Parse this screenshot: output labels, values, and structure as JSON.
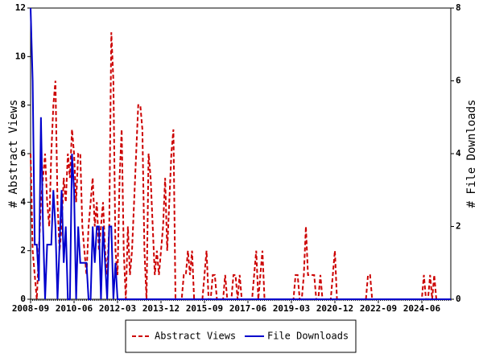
{
  "chart_data": {
    "type": "line",
    "y_label": "# Abstract Views",
    "y2_label": "# File Downloads",
    "x": [
      "2008-09",
      "2008-10",
      "2008-11",
      "2008-12",
      "2009-01",
      "2009-02",
      "2009-03",
      "2009-04",
      "2009-05",
      "2009-06",
      "2009-07",
      "2009-08",
      "2009-09",
      "2009-10",
      "2009-11",
      "2009-12",
      "2010-01",
      "2010-02",
      "2010-03",
      "2010-04",
      "2010-05",
      "2010-06",
      "2010-07",
      "2010-08",
      "2010-09",
      "2010-10",
      "2010-11",
      "2010-12",
      "2011-01",
      "2011-02",
      "2011-03",
      "2011-04",
      "2011-05",
      "2011-06",
      "2011-07",
      "2011-08",
      "2011-09",
      "2011-10",
      "2011-11",
      "2011-12",
      "2012-01",
      "2012-02",
      "2012-03",
      "2012-04",
      "2012-05",
      "2012-06",
      "2012-07",
      "2012-08",
      "2012-09",
      "2012-10",
      "2012-11",
      "2012-12",
      "2013-01",
      "2013-02",
      "2013-03",
      "2013-04",
      "2013-05",
      "2013-06",
      "2013-07",
      "2013-08",
      "2013-09",
      "2013-10",
      "2013-11",
      "2013-12",
      "2014-01",
      "2014-02",
      "2014-03",
      "2014-04",
      "2014-05",
      "2014-06",
      "2014-07",
      "2014-08",
      "2014-09",
      "2014-10",
      "2014-11",
      "2014-12",
      "2015-01",
      "2015-02",
      "2015-03",
      "2015-04",
      "2015-05",
      "2015-06",
      "2015-07",
      "2015-08",
      "2015-09",
      "2015-10",
      "2015-11",
      "2015-12",
      "2016-01",
      "2016-02",
      "2016-03",
      "2016-04",
      "2016-05",
      "2016-06",
      "2016-07",
      "2016-08",
      "2016-09",
      "2016-10",
      "2016-11",
      "2016-12",
      "2017-01",
      "2017-02",
      "2017-03",
      "2017-04",
      "2017-05",
      "2017-06",
      "2017-07",
      "2017-08",
      "2017-09",
      "2017-10",
      "2017-11",
      "2017-12",
      "2018-01",
      "2018-02",
      "2018-03",
      "2018-04",
      "2018-05",
      "2018-06",
      "2018-07",
      "2018-08",
      "2018-09",
      "2018-10",
      "2018-11",
      "2018-12",
      "2019-01",
      "2019-02",
      "2019-03",
      "2019-04",
      "2019-05",
      "2019-06",
      "2019-07",
      "2019-08",
      "2019-09",
      "2019-10",
      "2019-11",
      "2019-12",
      "2020-01",
      "2020-02",
      "2020-03",
      "2020-04",
      "2020-05",
      "2020-06",
      "2020-07",
      "2020-08",
      "2020-09",
      "2020-10",
      "2020-11",
      "2020-12",
      "2021-01",
      "2021-02",
      "2021-03",
      "2021-04",
      "2021-05",
      "2021-06",
      "2021-07",
      "2021-08",
      "2021-09",
      "2021-10",
      "2021-11",
      "2021-12",
      "2022-01",
      "2022-02",
      "2022-03",
      "2022-04",
      "2022-05",
      "2022-06",
      "2022-07",
      "2022-08",
      "2022-09",
      "2022-10",
      "2022-11",
      "2022-12",
      "2023-01",
      "2023-02",
      "2023-03",
      "2023-04",
      "2023-05",
      "2023-06",
      "2023-07",
      "2023-08",
      "2023-09",
      "2023-10",
      "2023-11",
      "2023-12",
      "2024-01",
      "2024-02",
      "2024-03",
      "2024-04",
      "2024-05",
      "2024-06",
      "2024-07",
      "2024-08",
      "2024-09",
      "2024-10",
      "2024-11",
      "2024-12",
      "2025-01",
      "2025-02",
      "2025-03",
      "2025-04",
      "2025-05",
      "2025-06",
      "2025-07",
      "2025-08"
    ],
    "xticks": [
      "2008-09",
      "2010-06",
      "2012-03",
      "2013-12",
      "2015-09",
      "2017-06",
      "2019-03",
      "2020-12",
      "2022-09",
      "2024-06"
    ],
    "ylim": [
      0,
      12
    ],
    "yticks": [
      0,
      2,
      4,
      6,
      8,
      10,
      12
    ],
    "y2lim": [
      0,
      8
    ],
    "y2ticks": [
      0,
      2,
      4,
      6,
      8
    ],
    "series": [
      {
        "name": "Abstract Views",
        "color": "#cc0000",
        "dashed": true,
        "values": [
          6,
          2,
          1,
          0,
          2,
          4,
          5,
          6,
          4,
          3,
          6,
          8,
          9,
          4,
          2,
          3,
          5,
          4,
          6,
          5,
          7,
          6,
          4,
          6,
          6,
          3,
          2,
          1,
          3,
          4,
          5,
          3,
          4,
          2,
          3,
          4,
          2,
          1,
          3,
          11,
          9,
          2,
          1,
          5,
          7,
          2,
          0,
          3,
          1,
          2,
          4,
          6,
          8,
          8,
          7,
          2,
          0,
          6,
          5,
          3,
          1,
          2,
          1,
          2,
          3,
          5,
          2,
          4,
          6,
          7,
          0,
          0,
          0,
          0,
          1,
          1,
          2,
          1,
          2,
          0,
          0,
          0,
          0,
          0,
          1,
          2,
          0,
          0,
          1,
          1,
          0,
          0,
          0,
          0,
          1,
          0,
          0,
          0,
          1,
          1,
          0,
          1,
          0,
          0,
          0,
          0,
          0,
          0,
          1,
          2,
          0,
          1,
          2,
          0,
          0,
          0,
          0,
          0,
          0,
          0,
          0,
          0,
          0,
          0,
          0,
          0,
          0,
          0,
          1,
          1,
          0,
          0,
          1,
          3,
          1,
          1,
          1,
          1,
          0,
          0,
          1,
          0,
          0,
          0,
          0,
          0,
          1,
          2,
          0,
          0,
          0,
          0,
          0,
          0,
          0,
          0,
          0,
          0,
          0,
          0,
          0,
          0,
          0,
          1,
          1,
          0,
          0,
          0,
          0,
          0,
          0,
          0,
          0,
          0,
          0,
          0,
          0,
          0,
          0,
          0,
          0,
          0,
          0,
          0,
          0,
          0,
          0,
          0,
          0,
          0,
          1,
          0,
          0,
          1,
          0,
          1,
          0,
          0,
          0,
          0,
          0,
          0,
          0,
          0
        ]
      },
      {
        "name": "File Downloads",
        "color": "#0000cc",
        "axis": "y2",
        "values": [
          8,
          6,
          1.5,
          1.5,
          0.5,
          5,
          2,
          0,
          1.5,
          1.5,
          1.5,
          3,
          2,
          0,
          1.5,
          3,
          1,
          2,
          0,
          0,
          4,
          3,
          0,
          2,
          1,
          1,
          1,
          1,
          0,
          0,
          2,
          1,
          2,
          2,
          0,
          2,
          1,
          0,
          2,
          2,
          0,
          1,
          0,
          0,
          0,
          0,
          0,
          0,
          0,
          0,
          0,
          0,
          0,
          0,
          0,
          0,
          0,
          0,
          0,
          0,
          0,
          0,
          0,
          0,
          0,
          0,
          0,
          0,
          0,
          0,
          0,
          0,
          0,
          0,
          0,
          0,
          0,
          0,
          0,
          0,
          0,
          0,
          0,
          0,
          0,
          0,
          0,
          0,
          0,
          0,
          0,
          0,
          0,
          0,
          0,
          0,
          0,
          0,
          0,
          0,
          0,
          0,
          0,
          0,
          0,
          0,
          0,
          0,
          0,
          0,
          0,
          0,
          0,
          0,
          0,
          0,
          0,
          0,
          0,
          0,
          0,
          0,
          0,
          0,
          0,
          0,
          0,
          0,
          0,
          0,
          0,
          0,
          0,
          0,
          0,
          0,
          0,
          0,
          0,
          0,
          0,
          0,
          0,
          0,
          0,
          0,
          0,
          0,
          0,
          0,
          0,
          0,
          0,
          0,
          0,
          0,
          0,
          0,
          0,
          0,
          0,
          0,
          0,
          0,
          0,
          0,
          0,
          0,
          0,
          0,
          0,
          0,
          0,
          0,
          0,
          0,
          0,
          0,
          0,
          0,
          0,
          0,
          0,
          0,
          0,
          0,
          0,
          0,
          0,
          0,
          0,
          0,
          0,
          0,
          0,
          0,
          0,
          0,
          0,
          0,
          0,
          0,
          0,
          0
        ]
      }
    ]
  }
}
